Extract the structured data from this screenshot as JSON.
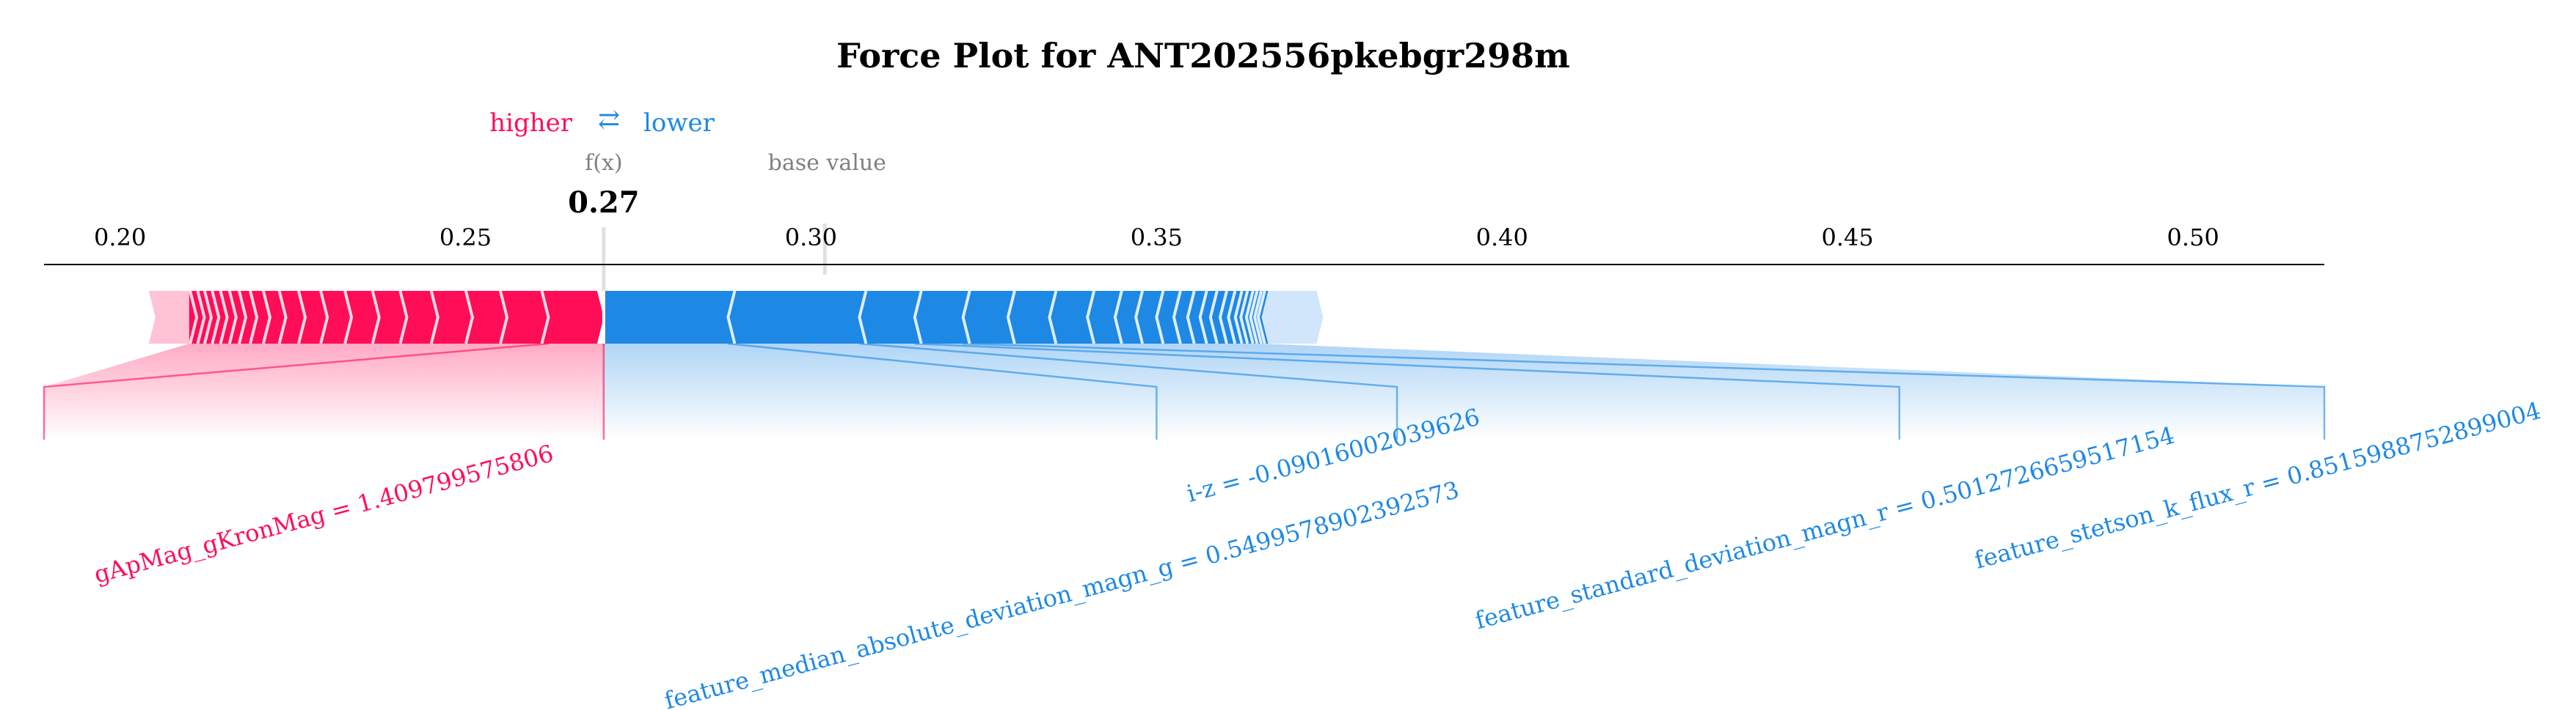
{
  "chart_data": {
    "type": "force",
    "title": "Force Plot for ANT202556pkebgr298m",
    "legend": {
      "higher": "higher",
      "arrow": "⇄",
      "lower": "lower"
    },
    "fx_label": "f(x)",
    "fx_value": 0.27,
    "fx_text": "0.27",
    "base_value_label": "base value",
    "base_value": 0.302,
    "xlim": [
      0.189,
      0.519
    ],
    "ticks": [
      0.2,
      0.25,
      0.3,
      0.35,
      0.4,
      0.45,
      0.5
    ],
    "tick_labels": [
      "0.20",
      "0.25",
      "0.30",
      "0.35",
      "0.40",
      "0.45",
      "0.50"
    ],
    "positive_segments": [
      [
        0.21,
        0.2111
      ],
      [
        0.2111,
        0.2122
      ],
      [
        0.2122,
        0.2132
      ],
      [
        0.2132,
        0.2143
      ],
      [
        0.2143,
        0.2155
      ],
      [
        0.2155,
        0.2168
      ],
      [
        0.2168,
        0.2182
      ],
      [
        0.2182,
        0.2198
      ],
      [
        0.2198,
        0.2217
      ],
      [
        0.2217,
        0.224
      ],
      [
        0.224,
        0.2268
      ],
      [
        0.2268,
        0.23
      ],
      [
        0.23,
        0.2335
      ],
      [
        0.2335,
        0.2375
      ],
      [
        0.2375,
        0.2415
      ],
      [
        0.2415,
        0.246
      ],
      [
        0.246,
        0.251
      ],
      [
        0.251,
        0.256
      ],
      [
        0.256,
        0.262
      ],
      [
        0.262,
        0.27
      ]
    ],
    "negative_segments": [
      [
        0.27,
        0.288
      ],
      [
        0.288,
        0.307
      ],
      [
        0.307,
        0.315
      ],
      [
        0.315,
        0.322
      ],
      [
        0.322,
        0.3285
      ],
      [
        0.3285,
        0.3345
      ],
      [
        0.3345,
        0.34
      ],
      [
        0.34,
        0.344
      ],
      [
        0.344,
        0.347
      ],
      [
        0.347,
        0.35
      ],
      [
        0.35,
        0.3525
      ],
      [
        0.3525,
        0.3545
      ],
      [
        0.3545,
        0.3563
      ],
      [
        0.3563,
        0.3578
      ],
      [
        0.3578,
        0.3592
      ],
      [
        0.3592,
        0.3604
      ],
      [
        0.3604,
        0.3614
      ],
      [
        0.3614,
        0.3622
      ],
      [
        0.3622,
        0.363
      ],
      [
        0.363,
        0.3636
      ],
      [
        0.3636,
        0.3642
      ],
      [
        0.3642,
        0.3647
      ],
      [
        0.3647,
        0.3652
      ]
    ],
    "labeled_features": [
      {
        "label": "gApMag_gKronMag = 1.409799575806",
        "sign": "positive",
        "range": [
          0.262,
          0.27
        ]
      },
      {
        "label": "feature_median_absolute_deviation_magn_g = 0.5499578902392573",
        "sign": "negative",
        "range": [
          0.27,
          0.288
        ]
      },
      {
        "label": "i-z = -0.09016002039626",
        "sign": "negative",
        "range": [
          0.288,
          0.307
        ]
      },
      {
        "label": "feature_standard_deviation_magn_r = 0.5012726659517154",
        "sign": "negative",
        "range": [
          0.307,
          0.315
        ]
      },
      {
        "label": "feature_stetson_k_flux_r = 0.8515988752899004",
        "sign": "negative",
        "range": [
          0.315,
          0.322
        ]
      }
    ],
    "colors": {
      "positive": "#ff0d57",
      "negative": "#1e88e5",
      "positive_light": "#ffc3d5",
      "negative_light": "#d1e6fa",
      "text_gray": "#808080"
    }
  }
}
